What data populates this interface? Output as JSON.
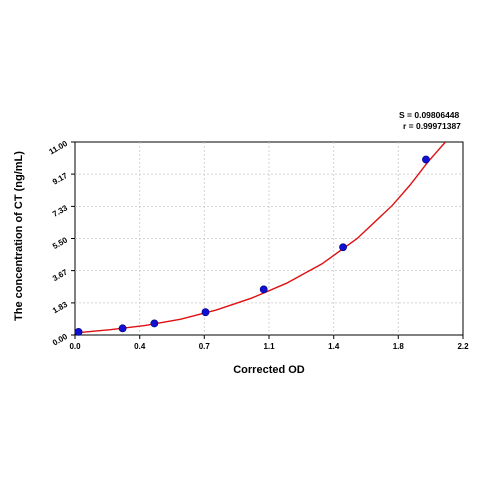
{
  "stats": {
    "s_line": "S = 0.09806448",
    "r_line": "r = 0.99971387"
  },
  "chart_data": {
    "type": "scatter",
    "xlabel": "Corrected OD",
    "ylabel": "The concentration of CT (ng/mL)",
    "xlim": [
      0,
      2.2
    ],
    "ylim": [
      0,
      11.0
    ],
    "x_ticks": [
      "0.0",
      "0.4",
      "0.7",
      "1.1",
      "1.4",
      "1.8",
      "2.2"
    ],
    "x_tick_values": [
      0.0,
      0.367,
      0.733,
      1.1,
      1.467,
      1.833,
      2.2
    ],
    "y_ticks": [
      "0.00",
      "1.83",
      "3.67",
      "5.50",
      "7.33",
      "9.17",
      "11.00"
    ],
    "y_tick_values": [
      0.0,
      1.83,
      3.67,
      5.5,
      7.33,
      9.17,
      11.0
    ],
    "grid": true,
    "point_color": "#1010d0",
    "curve_color": "#e01010",
    "points": [
      {
        "x": 0.02,
        "y": 0.18
      },
      {
        "x": 0.27,
        "y": 0.38
      },
      {
        "x": 0.45,
        "y": 0.66
      },
      {
        "x": 0.74,
        "y": 1.3
      },
      {
        "x": 1.07,
        "y": 2.6
      },
      {
        "x": 1.52,
        "y": 5.0
      },
      {
        "x": 1.99,
        "y": 10.0
      }
    ],
    "curve": [
      {
        "x": 0.0,
        "y": 0.12
      },
      {
        "x": 0.2,
        "y": 0.3
      },
      {
        "x": 0.4,
        "y": 0.55
      },
      {
        "x": 0.6,
        "y": 0.9
      },
      {
        "x": 0.8,
        "y": 1.42
      },
      {
        "x": 1.0,
        "y": 2.1
      },
      {
        "x": 1.2,
        "y": 2.95
      },
      {
        "x": 1.4,
        "y": 4.05
      },
      {
        "x": 1.6,
        "y": 5.5
      },
      {
        "x": 1.8,
        "y": 7.4
      },
      {
        "x": 1.9,
        "y": 8.55
      },
      {
        "x": 2.0,
        "y": 9.85
      },
      {
        "x": 2.1,
        "y": 11.0
      }
    ]
  }
}
